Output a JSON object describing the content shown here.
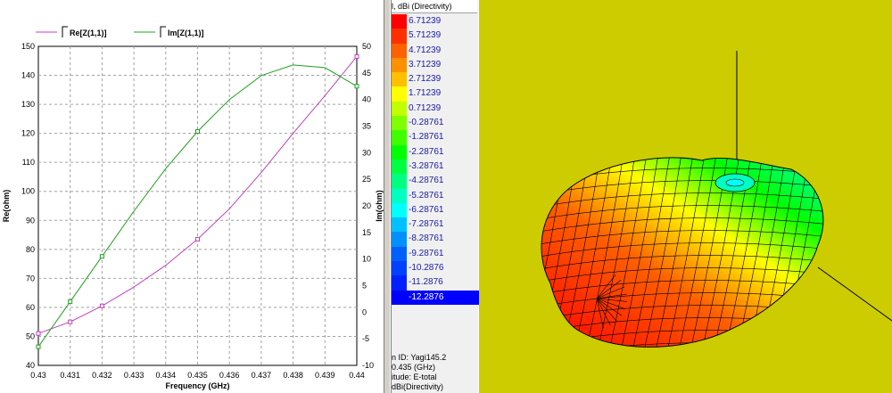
{
  "chart_data": {
    "type": "line",
    "xlabel": "Frequency (GHz)",
    "ylabel": "Re(ohm)",
    "y2label": "Im(ohm)",
    "xlim": [
      0.43,
      0.44
    ],
    "ylim": [
      40,
      150
    ],
    "y2lim": [
      -10,
      50
    ],
    "x_ticks": [
      "0.43",
      "0.431",
      "0.432",
      "0.433",
      "0.434",
      "0.435",
      "0.436",
      "0.437",
      "0.438",
      "0.439",
      "0.44"
    ],
    "y_ticks": [
      "40",
      "50",
      "60",
      "70",
      "80",
      "90",
      "100",
      "110",
      "120",
      "130",
      "140",
      "150"
    ],
    "y2_ticks": [
      "-10",
      "-5",
      "0",
      "5",
      "10",
      "15",
      "20",
      "25",
      "30",
      "35",
      "40",
      "45",
      "50"
    ],
    "grid": true,
    "legend_position": "top",
    "series": [
      {
        "name": "Re[Z(1,1)]",
        "axis": "left",
        "color": "#c040c0",
        "x": [
          0.43,
          0.431,
          0.432,
          0.433,
          0.434,
          0.435,
          0.436,
          0.437,
          0.438,
          0.439,
          0.44
        ],
        "values": [
          51,
          55,
          60.5,
          67,
          74.5,
          83.5,
          94,
          106.5,
          120,
          133,
          146.5
        ],
        "markers_at": [
          0.43,
          0.431,
          0.432,
          0.435,
          0.44
        ]
      },
      {
        "name": "Im[Z(1,1)]",
        "axis": "right",
        "color": "#20a020",
        "x": [
          0.43,
          0.431,
          0.432,
          0.433,
          0.434,
          0.435,
          0.436,
          0.437,
          0.438,
          0.439,
          0.44
        ],
        "values": [
          -6.5,
          2,
          10.5,
          19,
          27,
          34,
          40,
          44.5,
          46.5,
          46,
          42.5
        ],
        "markers_at": [
          0.43,
          0.431,
          0.432,
          0.435,
          0.44
        ]
      }
    ]
  },
  "legend": {
    "title": "l, dBi (Directivity)",
    "levels": [
      {
        "label": "6.71239",
        "color": "#ff0000"
      },
      {
        "label": "5.71239",
        "color": "#ff3000"
      },
      {
        "label": "4.71239",
        "color": "#ff6000"
      },
      {
        "label": "3.71239",
        "color": "#ff9000"
      },
      {
        "label": "2.71239",
        "color": "#ffc000"
      },
      {
        "label": "1.71239",
        "color": "#ffff00"
      },
      {
        "label": "0.71239",
        "color": "#c0ff00"
      },
      {
        "label": "-0.28761",
        "color": "#80ff00"
      },
      {
        "label": "-1.28761",
        "color": "#40ff00"
      },
      {
        "label": "-2.28761",
        "color": "#00ff00"
      },
      {
        "label": "-3.28761",
        "color": "#00ff40"
      },
      {
        "label": "-4.28761",
        "color": "#00ff80"
      },
      {
        "label": "-5.28761",
        "color": "#00ffc0"
      },
      {
        "label": "-6.28761",
        "color": "#00ffff"
      },
      {
        "label": "-7.28761",
        "color": "#00c0ff"
      },
      {
        "label": "-8.28761",
        "color": "#0090ff"
      },
      {
        "label": "-9.28761",
        "color": "#0060ff"
      },
      {
        "label": "-10.2876",
        "color": "#0040ff"
      },
      {
        "label": "-11.2876",
        "color": "#0020ff"
      },
      {
        "label": "-12.2876",
        "color": "#0000ff"
      }
    ],
    "selected_index": 19,
    "info": [
      "n ID: Yagi145.2",
      "0.435 (GHz)",
      "itude: E-total",
      "dBi(Directivity)"
    ]
  },
  "view3d": {
    "background": "#cccc00"
  }
}
